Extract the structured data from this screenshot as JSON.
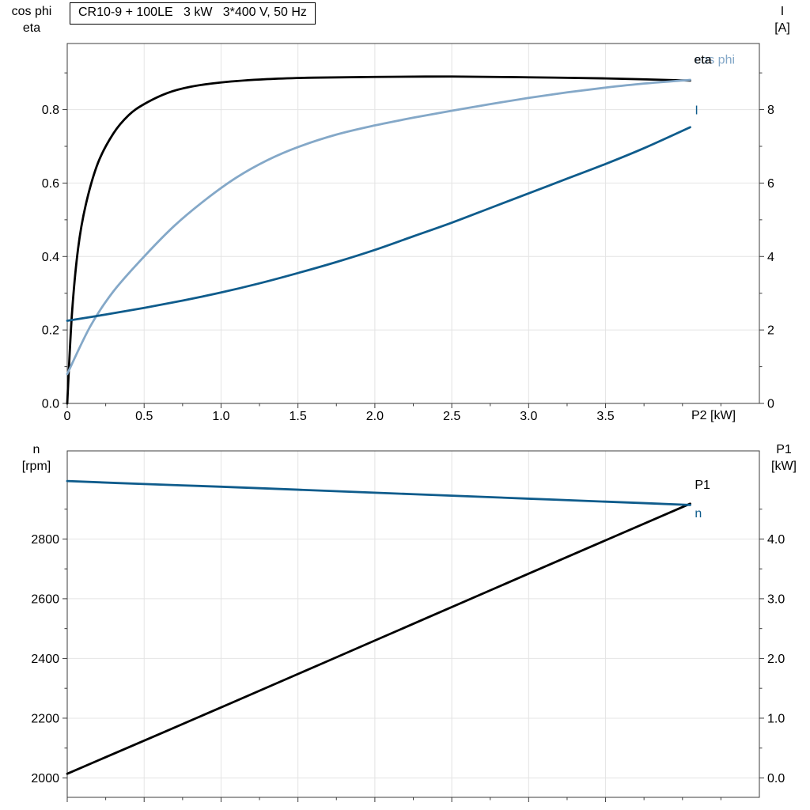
{
  "colors": {
    "black": "#000000",
    "light_blue": "#84a8c8",
    "dark_blue": "#0f5c8c",
    "grid": "#e4e4e4",
    "axis": "#3c3c3c"
  },
  "chart_data": [
    {
      "type": "line",
      "title": "CR10-9 + 100LE   3 kW   3*400 V, 50 Hz",
      "axis_titles": {
        "left": [
          "cos phi",
          "eta"
        ],
        "right": [
          "I",
          "[A]"
        ],
        "x": "P2 [kW]"
      },
      "xlim": [
        0,
        4.5
      ],
      "ylim_left": [
        0,
        0.98
      ],
      "ylim_right": [
        0,
        9.8
      ],
      "xticks": {
        "values": [
          0,
          0.5,
          1,
          1.5,
          2,
          2.5,
          3,
          3.5
        ],
        "labels": [
          "0",
          "0.5",
          "1.0",
          "1.5",
          "2.0",
          "2.5",
          "3.0",
          "3.5"
        ]
      },
      "xticks_minor": [
        0.25,
        0.75,
        1.25,
        1.75,
        2.25,
        2.75,
        3.25,
        3.75,
        4,
        4.25
      ],
      "yticks_left": {
        "values": [
          0,
          0.2,
          0.4,
          0.6,
          0.8
        ],
        "labels": [
          "0.0",
          "0.2",
          "0.4",
          "0.6",
          "0.8"
        ]
      },
      "yticks_left_minor": [
        0.1,
        0.3,
        0.5,
        0.7,
        0.9
      ],
      "yticks_right": {
        "values": [
          0,
          2,
          4,
          6,
          8
        ],
        "labels": [
          "0",
          "2",
          "4",
          "6",
          "8"
        ]
      },
      "yticks_right_minor": [
        1,
        3,
        5,
        7,
        9
      ],
      "series": [
        {
          "name": "eta",
          "axis": "left",
          "color": "#000000",
          "width": 2.8,
          "x": [
            0,
            0.03,
            0.07,
            0.12,
            0.2,
            0.3,
            0.4,
            0.5,
            0.65,
            0.8,
            1.0,
            1.3,
            1.6,
            2.0,
            2.5,
            3.0,
            3.5,
            4.05
          ],
          "y": [
            0,
            0.24,
            0.42,
            0.54,
            0.655,
            0.735,
            0.785,
            0.815,
            0.845,
            0.862,
            0.874,
            0.883,
            0.887,
            0.889,
            0.89,
            0.888,
            0.885,
            0.879
          ]
        },
        {
          "name": "cos phi",
          "axis": "left",
          "color": "#84a8c8",
          "width": 2.8,
          "x": [
            0,
            0.15,
            0.3,
            0.5,
            0.7,
            0.9,
            1.1,
            1.3,
            1.5,
            1.75,
            2.0,
            2.25,
            2.5,
            2.75,
            3.0,
            3.25,
            3.5,
            3.75,
            4.05
          ],
          "y": [
            0.08,
            0.21,
            0.305,
            0.4,
            0.485,
            0.555,
            0.615,
            0.662,
            0.698,
            0.732,
            0.757,
            0.778,
            0.797,
            0.815,
            0.832,
            0.847,
            0.86,
            0.871,
            0.881
          ]
        },
        {
          "name": "I",
          "axis": "right",
          "color": "#0f5c8c",
          "width": 2.8,
          "x": [
            0,
            0.25,
            0.5,
            0.75,
            1.0,
            1.25,
            1.5,
            1.75,
            2.0,
            2.25,
            2.5,
            2.75,
            3.0,
            3.25,
            3.5,
            3.75,
            4.05
          ],
          "y": [
            2.25,
            2.42,
            2.6,
            2.8,
            3.02,
            3.27,
            3.55,
            3.85,
            4.18,
            4.55,
            4.92,
            5.32,
            5.72,
            6.12,
            6.52,
            6.95,
            7.52
          ]
        }
      ],
      "series_labels": [
        {
          "text": "cos phi",
          "color": "#84a8c8",
          "axis": "left",
          "x": 4.08,
          "y": 0.925
        },
        {
          "text": "eta",
          "color": "#000000",
          "axis": "left",
          "x": 4.075,
          "y": 0.925
        },
        {
          "text": "I",
          "color": "#0f5c8c",
          "axis": "left",
          "x": 4.08,
          "y": 0.787
        }
      ]
    },
    {
      "type": "line",
      "title": "",
      "axis_titles": {
        "left": [
          "n",
          "[rpm]"
        ],
        "right": [
          "P1",
          "[kW]"
        ],
        "x": ""
      },
      "xlim": [
        0,
        4.5
      ],
      "ylim_left": [
        1935,
        3095
      ],
      "ylim_right": [
        -0.325,
        5.475
      ],
      "xticks": {
        "values": [
          0,
          0.5,
          1,
          1.5,
          2,
          2.5,
          3,
          3.5
        ],
        "labels": [
          "",
          "",
          "",
          "",
          "",
          "",
          "",
          ""
        ]
      },
      "xticks_minor": [
        0.25,
        0.75,
        1.25,
        1.75,
        2.25,
        2.75,
        3.25,
        3.75,
        4,
        4.25
      ],
      "yticks_left": {
        "values": [
          2000,
          2200,
          2400,
          2600,
          2800
        ],
        "labels": [
          "2000",
          "2200",
          "2400",
          "2600",
          "2800"
        ]
      },
      "yticks_left_minor": [
        2100,
        2300,
        2500,
        2700,
        2900
      ],
      "yticks_right": {
        "values": [
          0,
          1,
          2,
          3,
          4
        ],
        "labels": [
          "0.0",
          "1.0",
          "2.0",
          "3.0",
          "4.0"
        ]
      },
      "yticks_right_minor": [
        0.5,
        1.5,
        2.5,
        3.5,
        4.5
      ],
      "series": [
        {
          "name": "P1",
          "axis": "right",
          "color": "#000000",
          "width": 2.8,
          "x": [
            0,
            1,
            2,
            3,
            4.05
          ],
          "y": [
            0.07,
            1.18,
            2.3,
            3.42,
            4.59
          ]
        },
        {
          "name": "n",
          "axis": "left",
          "color": "#0f5c8c",
          "width": 2.8,
          "x": [
            0,
            0.5,
            1.0,
            1.5,
            2.0,
            2.5,
            3.0,
            3.5,
            4.05
          ],
          "y": [
            2994,
            2984,
            2975,
            2965,
            2955,
            2945,
            2935,
            2925,
            2914
          ]
        }
      ],
      "series_labels": [
        {
          "text": "P1",
          "color": "#000000",
          "axis": "left",
          "x": 4.08,
          "y": 2968
        },
        {
          "text": "n",
          "color": "#0f5c8c",
          "axis": "left",
          "x": 4.08,
          "y": 2872
        }
      ]
    }
  ]
}
